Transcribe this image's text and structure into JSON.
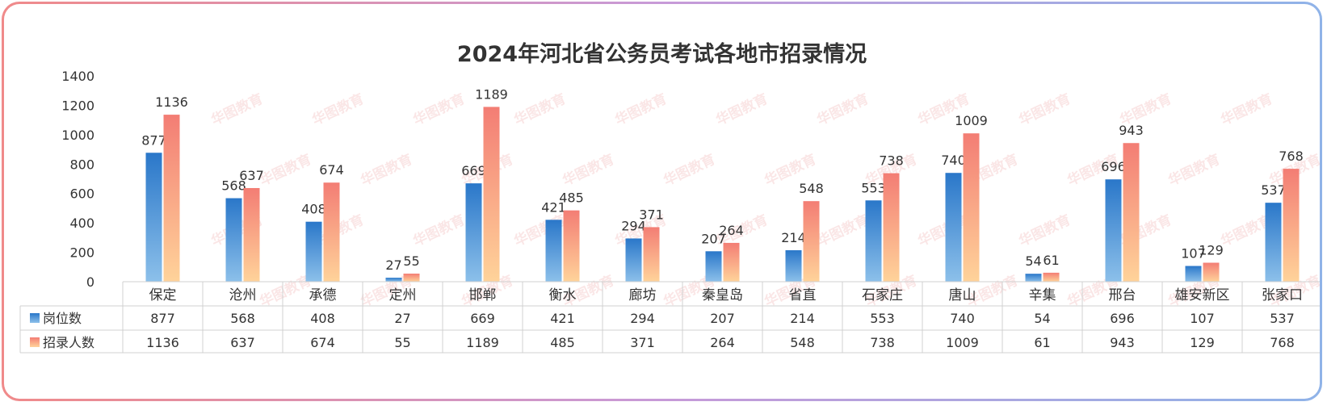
{
  "chart_data": {
    "type": "bar",
    "title": "2024年河北省公务员考试各地市招录情况",
    "categories": [
      "保定",
      "沧州",
      "承德",
      "定州",
      "邯郸",
      "衡水",
      "廊坊",
      "秦皇岛",
      "省直",
      "石家庄",
      "唐山",
      "辛集",
      "邢台",
      "雄安新区",
      "张家口"
    ],
    "series": [
      {
        "name": "岗位数",
        "values": [
          877,
          568,
          408,
          27,
          669,
          421,
          294,
          207,
          214,
          553,
          740,
          54,
          696,
          107,
          537
        ],
        "color_top": "#2a77c9",
        "color_bottom": "#8cc0ea"
      },
      {
        "name": "招录人数",
        "values": [
          1136,
          637,
          674,
          55,
          1189,
          485,
          371,
          264,
          548,
          738,
          1009,
          61,
          943,
          129,
          768
        ],
        "color_top": "#f37d74",
        "color_bottom": "#ffd39a"
      }
    ],
    "ylim": [
      0,
      1400
    ],
    "yticks": [
      0,
      200,
      400,
      600,
      800,
      1000,
      1200,
      1400
    ],
    "grid": false,
    "legend": "data-table"
  },
  "watermark": "华图教育"
}
